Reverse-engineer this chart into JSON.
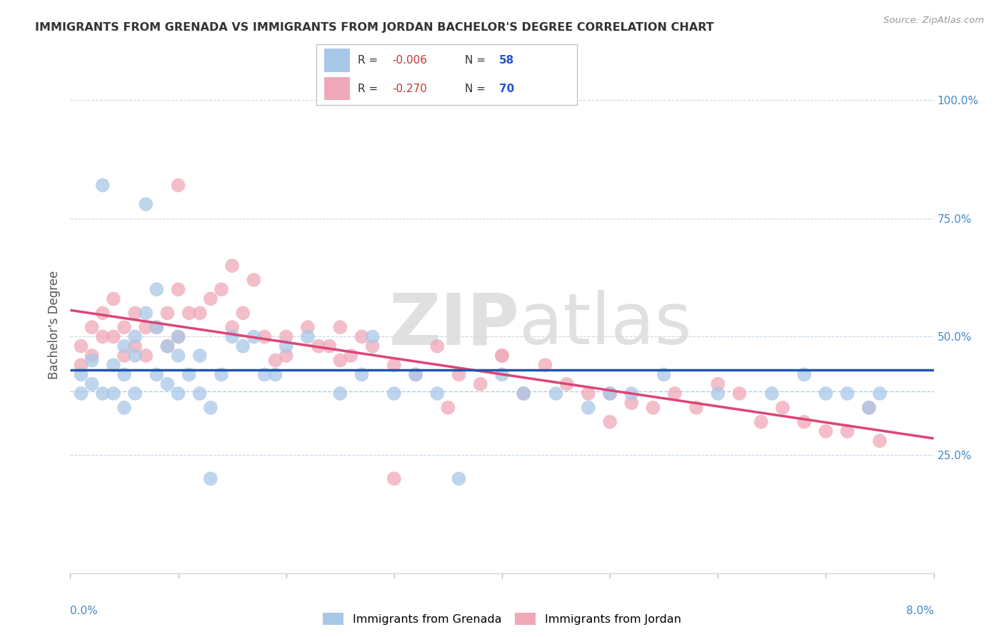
{
  "title": "IMMIGRANTS FROM GRENADA VS IMMIGRANTS FROM JORDAN BACHELOR'S DEGREE CORRELATION CHART",
  "source": "Source: ZipAtlas.com",
  "ylabel": "Bachelor's Degree",
  "grenada_color": "#a8c8e8",
  "jordan_color": "#f0a8b8",
  "grenada_line_color": "#2255aa",
  "jordan_line_color": "#dd4477",
  "grenada_R": -0.006,
  "grenada_N": 58,
  "jordan_R": -0.27,
  "jordan_N": 70,
  "xlim": [
    0.0,
    0.08
  ],
  "ylim": [
    0.0,
    1.05
  ],
  "right_yticks": [
    0.25,
    0.5,
    0.75,
    1.0
  ],
  "right_yticklabels": [
    "25.0%",
    "50.0%",
    "75.0%",
    "100.0%"
  ],
  "grid_color": "#c8d8e8",
  "dashed_line_y": 0.385,
  "dashed_line_color": "#99bbdd"
}
